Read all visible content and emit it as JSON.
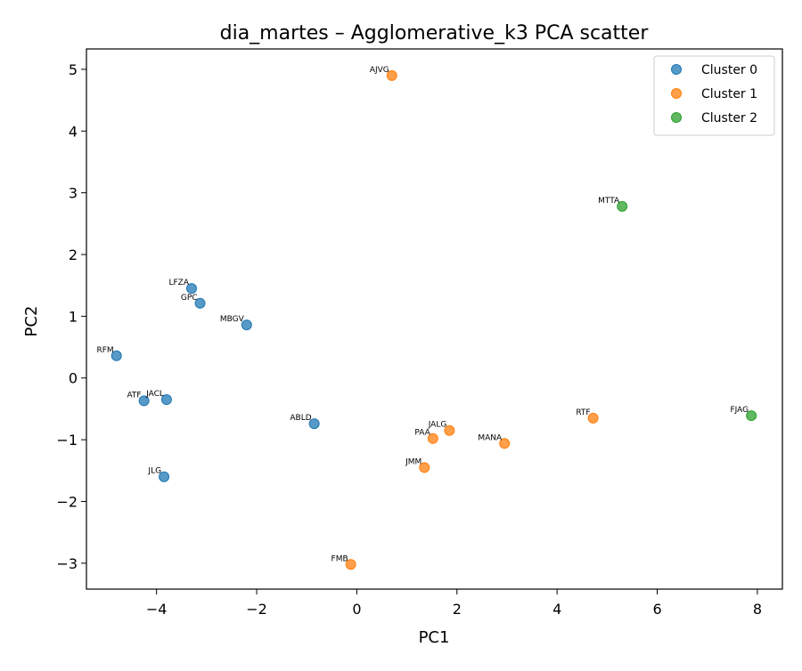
{
  "chart_data": {
    "type": "scatter",
    "title": "dia_martes – Agglomerative_k3 PCA scatter",
    "xlabel": "PC1",
    "ylabel": "PC2",
    "xlim": [
      -5.4,
      8.5
    ],
    "ylim": [
      -3.42,
      5.33
    ],
    "xticks": [
      -4,
      -2,
      0,
      2,
      4,
      6,
      8
    ],
    "yticks": [
      -3,
      -2,
      -1,
      0,
      1,
      2,
      3,
      4,
      5
    ],
    "grid": false,
    "legend_position": "top-right",
    "series": [
      {
        "name": "Cluster 0",
        "color": "#1f77b4",
        "points": [
          {
            "label": "LFZA",
            "x": -3.3,
            "y": 1.45
          },
          {
            "label": "GPC",
            "x": -3.13,
            "y": 1.21
          },
          {
            "label": "MBGV",
            "x": -2.2,
            "y": 0.86
          },
          {
            "label": "RFM",
            "x": -4.8,
            "y": 0.36
          },
          {
            "label": "ATF",
            "x": -4.25,
            "y": -0.37
          },
          {
            "label": "JACL",
            "x": -3.8,
            "y": -0.35
          },
          {
            "label": "ABLD",
            "x": -0.85,
            "y": -0.74
          },
          {
            "label": "JLG",
            "x": -3.85,
            "y": -1.6
          }
        ]
      },
      {
        "name": "Cluster 1",
        "color": "#ff7f0e",
        "points": [
          {
            "label": "AJVG",
            "x": 0.7,
            "y": 4.9
          },
          {
            "label": "RTF",
            "x": 4.72,
            "y": -0.65
          },
          {
            "label": "JALG",
            "x": 1.85,
            "y": -0.85
          },
          {
            "label": "PAA",
            "x": 1.52,
            "y": -0.98
          },
          {
            "label": "MANA",
            "x": 2.95,
            "y": -1.06
          },
          {
            "label": "JMM",
            "x": 1.35,
            "y": -1.45
          },
          {
            "label": "FMB",
            "x": -0.12,
            "y": -3.02
          }
        ]
      },
      {
        "name": "Cluster 2",
        "color": "#2ca02c",
        "points": [
          {
            "label": "MTTA",
            "x": 5.3,
            "y": 2.78
          },
          {
            "label": "FJAG",
            "x": 7.88,
            "y": -0.61
          }
        ]
      }
    ]
  }
}
